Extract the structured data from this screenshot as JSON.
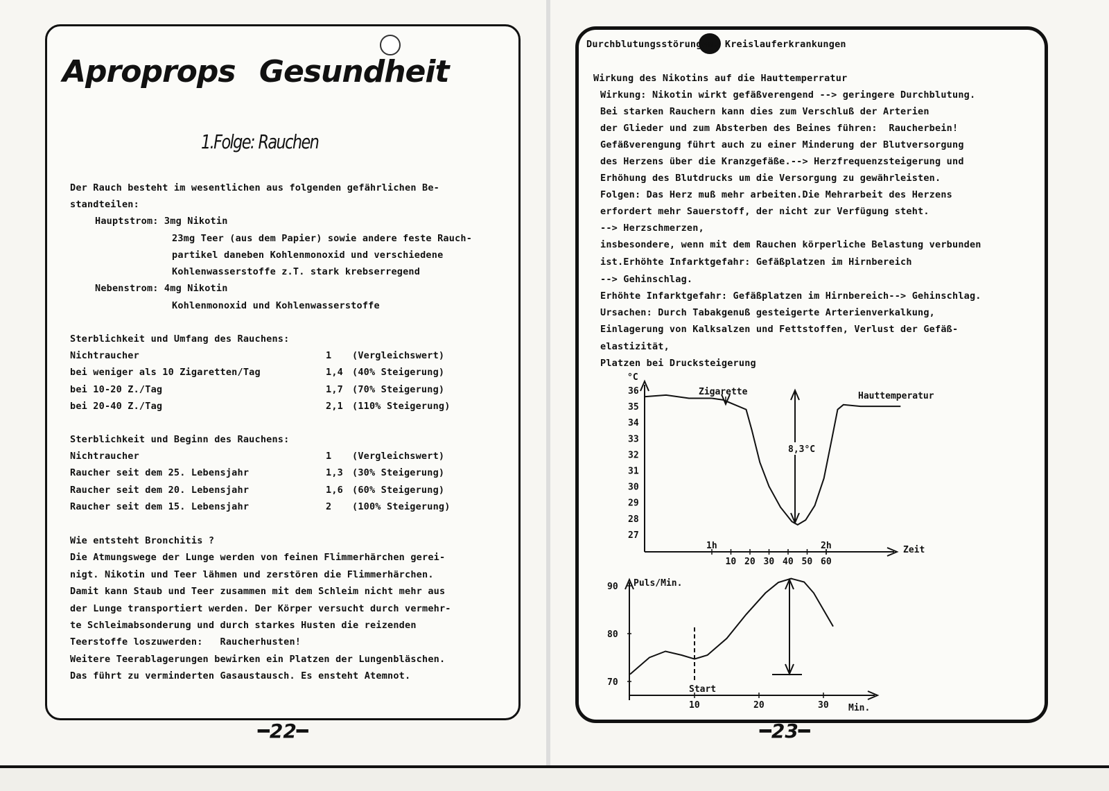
{
  "left_page": {
    "title": "Aproprops Gesundheit",
    "subtitle": "1.Folge: Rauchen",
    "page_number": "22",
    "lines": [
      {
        "t": "Der Rauch besteht im wesentlichen aus folgenden gefährlichen Be-",
        "x": 101,
        "y": 263
      },
      {
        "t": "standteilen:",
        "x": 101,
        "y": 287
      },
      {
        "t": "Hauptstrom: 3mg Nikotin",
        "x": 137,
        "y": 311
      },
      {
        "t": "23mg Teer (aus dem Papier) sowie andere feste Rauch-",
        "x": 248,
        "y": 336
      },
      {
        "t": "partikel daneben Kohlenmonoxid und verschiedene",
        "x": 248,
        "y": 360
      },
      {
        "t": "Kohlenwasserstoffe z.T. stark krebserregend",
        "x": 248,
        "y": 384
      },
      {
        "t": "Nebenstrom: 4mg Nikotin",
        "x": 137,
        "y": 408
      },
      {
        "t": "Kohlenmonoxid und Kohlenwasserstoffe",
        "x": 248,
        "y": 433
      },
      {
        "t": "Sterblichkeit und Umfang des Rauchens:",
        "x": 101,
        "y": 481
      },
      {
        "t": "Sterblichkeit und Beginn des Rauchens:",
        "x": 101,
        "y": 626
      },
      {
        "t": "Wie entsteht Bronchitis ?",
        "x": 101,
        "y": 772
      },
      {
        "t": "Die Atmungswege der Lunge werden von feinen Flimmerhärchen gerei-",
        "x": 101,
        "y": 796
      },
      {
        "t": "nigt. Nikotin und Teer lähmen und zerstören die Flimmerhärchen.",
        "x": 101,
        "y": 821
      },
      {
        "t": "Damit kann Staub und Teer zusammen mit dem Schleim nicht mehr aus",
        "x": 101,
        "y": 845
      },
      {
        "t": "der Lunge transportiert werden. Der Körper versucht durch vermehr-",
        "x": 101,
        "y": 870
      },
      {
        "t": "te Schleimabsonderung und durch starkes Husten die reizenden",
        "x": 101,
        "y": 894
      },
      {
        "t": "Teerstoffe loszuwerden:   Raucherhusten!",
        "x": 101,
        "y": 918
      },
      {
        "t": "Weitere Teerablagerungen bewirken ein Platzen der Lungenbläschen.",
        "x": 101,
        "y": 943
      },
      {
        "t": "Das führt zu verminderten Gasaustausch. Es ensteht Atemnot.",
        "x": 101,
        "y": 967
      }
    ],
    "table_umfang": [
      {
        "label": "Nichtraucher",
        "factor": "1",
        "note": "(Vergleichswert)"
      },
      {
        "label": "bei weniger als 10 Zigaretten/Tag",
        "factor": "1,4",
        "note": "(40% Steigerung)"
      },
      {
        "label": "bei 10-20 Z./Tag",
        "factor": "1,7",
        "note": "(70% Steigerung)"
      },
      {
        "label": "bei 20-40 Z./Tag",
        "factor": "2,1",
        "note": "(110% Steigerung)"
      }
    ],
    "table_beginn": [
      {
        "label": "Nichtraucher",
        "factor": "1",
        "note": "(Vergleichswert)"
      },
      {
        "label": "Raucher seit dem 25. Lebensjahr",
        "factor": "1,3",
        "note": "(30% Steigerung)"
      },
      {
        "label": "Raucher seit dem 20. Lebensjahr",
        "factor": "1,6",
        "note": "(60% Steigerung)"
      },
      {
        "label": "Raucher seit dem 15. Lebensjahr",
        "factor": "2",
        "note": "(100% Steigerung)"
      }
    ]
  },
  "right_page": {
    "page_number": "23",
    "lines": [
      {
        "t": "Durchblutungsstörungen, Kreislauferkrankungen",
        "x": 846,
        "y": 56
      },
      {
        "t": "Wirkung des Nikotins auf die Hauttemperratur",
        "x": 856,
        "y": 105
      },
      {
        "t": "Wirkung: Nikotin wirkt gefäßverengend --> geringere Durchblutung.",
        "x": 866,
        "y": 129
      },
      {
        "t": "Bei starken Rauchern kann dies zum Verschluß der Arterien",
        "x": 866,
        "y": 153
      },
      {
        "t": "der Glieder und zum Absterben des Beines führen:  Raucherbein!",
        "x": 866,
        "y": 177
      },
      {
        "t": "Gefäßverengung führt auch zu einer Minderung der Blutversorgung",
        "x": 866,
        "y": 201
      },
      {
        "t": "des Herzens über die Kranzgefäße.--> Herzfrequenzsteigerung und",
        "x": 866,
        "y": 225
      },
      {
        "t": "Erhöhung des Blutdrucks um die Versorgung zu gewährleisten.",
        "x": 866,
        "y": 249
      },
      {
        "t": "Folgen: Das Herz muß mehr arbeiten.Die Mehrarbeit des Herzens",
        "x": 866,
        "y": 273
      },
      {
        "t": "erfordert mehr Sauerstoff, der nicht zur Verfügung steht.",
        "x": 866,
        "y": 297
      },
      {
        "t": "--> Herzschmerzen,",
        "x": 866,
        "y": 321
      },
      {
        "t": "insbesondere, wenn mit dem Rauchen körperliche Belastung verbunden",
        "x": 866,
        "y": 345
      },
      {
        "t": "ist.Erhöhte Infarktgefahr: Gefäßplatzen im Hirnbereich",
        "x": 866,
        "y": 370
      },
      {
        "t": "--> Gehinschlag.",
        "x": 866,
        "y": 395
      },
      {
        "t": "Erhöhte Infarktgefahr: Gefäßplatzen im Hirnbereich--> Gehinschlag.",
        "x": 866,
        "y": 419
      },
      {
        "t": "Ursachen: Durch Tabakgenuß gesteigerte Arterienverkalkung,",
        "x": 866,
        "y": 443
      },
      {
        "t": "Einlagerung von Kalksalzen und Fettstoffen, Verlust der Gefäß-",
        "x": 866,
        "y": 467
      },
      {
        "t": "elastizität,",
        "x": 866,
        "y": 492
      },
      {
        "t": "Platzen bei Drucksteigerung",
        "x": 866,
        "y": 516
      }
    ]
  },
  "chart_data": [
    {
      "type": "line",
      "ylabel": "°C",
      "xlabel": "Zeit",
      "yticks": [
        "27",
        "28",
        "29",
        "30",
        "31",
        "32",
        "33",
        "34",
        "35",
        "36"
      ],
      "xticks_hours": [
        "1h",
        "2h"
      ],
      "xticks_minutes": [
        "10",
        "20",
        "30",
        "40",
        "50",
        "60"
      ],
      "annotations": {
        "cigarette": "Zigarette",
        "series": "Hauttemperatur",
        "drop": "8,3°C"
      },
      "ylim": [
        26,
        36.5
      ],
      "x_unit": "hours",
      "x": [
        0.41,
        0.6,
        0.8,
        1.0,
        1.1,
        1.2,
        1.3,
        1.35,
        1.42,
        1.5,
        1.6,
        1.7,
        1.75,
        1.82,
        1.9,
        1.98,
        2.05,
        2.1,
        2.15,
        2.3,
        2.45,
        2.65
      ],
      "y": [
        35.6,
        35.7,
        35.5,
        35.5,
        35.4,
        35.1,
        34.8,
        33.5,
        31.5,
        30.0,
        28.7,
        27.8,
        27.6,
        27.9,
        28.8,
        30.5,
        33.0,
        34.8,
        35.1,
        35.0,
        35.0,
        35.0
      ]
    },
    {
      "type": "line",
      "ylabel": "Puls/Min.",
      "xlabel": "Min.",
      "yticks": [
        "70",
        "80",
        "90"
      ],
      "xticks": [
        "10",
        "20",
        "30"
      ],
      "annotations": {
        "start": "Start"
      },
      "ylim": [
        67,
        92
      ],
      "x": [
        0,
        3,
        5.5,
        8,
        10,
        12,
        15,
        18,
        21,
        23,
        25,
        27,
        28.5,
        30,
        31.5
      ],
      "y": [
        71.5,
        75,
        76.3,
        75.5,
        74.7,
        75.5,
        79,
        84,
        88.5,
        90.7,
        91.5,
        90.8,
        88.5,
        85,
        81.5
      ]
    }
  ]
}
